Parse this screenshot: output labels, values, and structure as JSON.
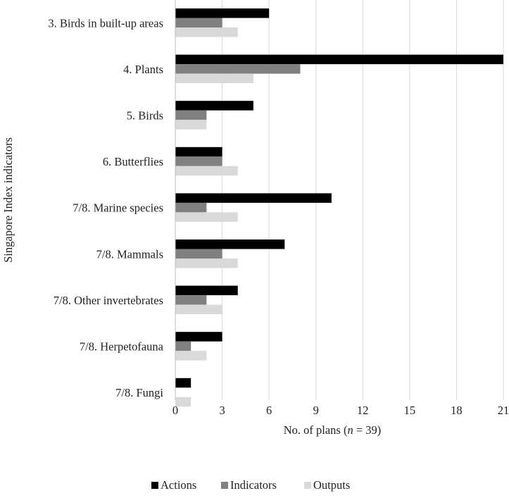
{
  "chart_data": {
    "type": "bar",
    "orientation": "horizontal",
    "categories": [
      "3. Birds in built-up areas",
      "4. Plants",
      "5. Birds",
      "6. Butterflies",
      "7/8. Marine species",
      "7/8. Mammals",
      "7/8. Other invertebrates",
      "7/8. Herpetofauna",
      "7/8. Fungi"
    ],
    "series": [
      {
        "name": "Actions",
        "color": "#000000",
        "values": [
          6,
          21,
          5,
          3,
          10,
          7,
          4,
          3,
          1
        ]
      },
      {
        "name": "Indicators",
        "color": "#808080",
        "values": [
          3,
          8,
          2,
          3,
          2,
          3,
          2,
          1,
          0
        ]
      },
      {
        "name": "Outputs",
        "color": "#d9d9d9",
        "values": [
          4,
          5,
          2,
          4,
          4,
          4,
          3,
          2,
          1
        ]
      }
    ],
    "xlabel": "No. of plans (n = 39)",
    "xlabel_parts": {
      "before": "No. of plans (",
      "italic": "n",
      "after": " = 39)"
    },
    "ylabel": "Singapore Index indicators",
    "xlim": [
      0,
      21
    ],
    "xticks": [
      0,
      3,
      6,
      9,
      12,
      15,
      18,
      21
    ],
    "grid": "vertical",
    "legend_position": "bottom"
  }
}
